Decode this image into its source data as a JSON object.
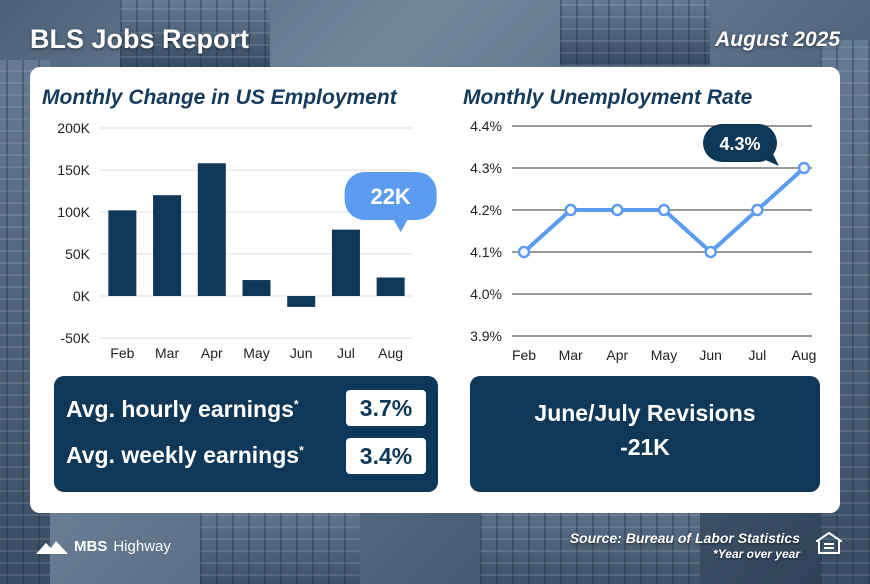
{
  "header": {
    "title": "BLS Jobs Report",
    "date": "August 2025"
  },
  "colors": {
    "navy": "#0f3757",
    "accent": "#5b9cf0",
    "title": "#163a5c"
  },
  "chart_data": [
    {
      "type": "bar",
      "title": "Monthly Change in US Employment",
      "categories": [
        "Feb",
        "Mar",
        "Apr",
        "May",
        "Jun",
        "Jul",
        "Aug"
      ],
      "values": [
        102000,
        120000,
        158000,
        19000,
        -13000,
        79000,
        22000
      ],
      "ylim": [
        -50000,
        200000
      ],
      "yticks": [
        200000,
        150000,
        100000,
        50000,
        0,
        -50000
      ],
      "ytick_labels": [
        "200K",
        "150K",
        "100K",
        "50K",
        "0K",
        "-50K"
      ],
      "grid": true,
      "callout": {
        "category": "Aug",
        "label": "22K"
      }
    },
    {
      "type": "line",
      "title": "Monthly Unemployment Rate",
      "categories": [
        "Feb",
        "Mar",
        "Apr",
        "May",
        "Jun",
        "Jul",
        "Aug"
      ],
      "values": [
        4.1,
        4.2,
        4.2,
        4.2,
        4.1,
        4.2,
        4.3
      ],
      "ylim": [
        3.9,
        4.4
      ],
      "yticks": [
        4.4,
        4.3,
        4.2,
        4.1,
        4.0,
        3.9
      ],
      "ytick_labels": [
        "4.4%",
        "4.3%",
        "4.2%",
        "4.1%",
        "4.0%",
        "3.9%"
      ],
      "grid": true,
      "callout": {
        "category": "Aug",
        "label": "4.3%"
      }
    }
  ],
  "earnings": {
    "hourly_label": "Avg. hourly earnings",
    "hourly_value": "3.7%",
    "weekly_label": "Avg. weekly earnings",
    "weekly_value": "3.4%",
    "marker": "*"
  },
  "revisions": {
    "label": "June/July Revisions",
    "value": "-21K"
  },
  "footer": {
    "brand_main": "MBS",
    "brand_sub": "Highway",
    "source": "Source: Bureau of Labor Statistics",
    "note": "*Year over year",
    "equal_housing_icon": "equal-housing-icon"
  }
}
